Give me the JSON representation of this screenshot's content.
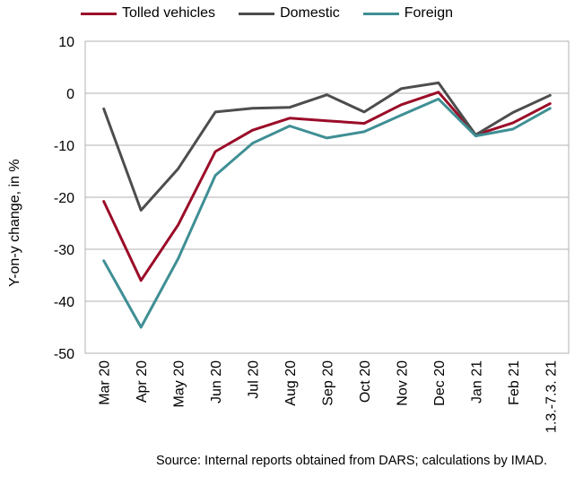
{
  "chart_data": {
    "type": "line",
    "ylabel": "Y-on-y change, in %",
    "ylim": [
      -50,
      10
    ],
    "yticks": [
      10,
      0,
      -10,
      -20,
      -30,
      -40,
      -50
    ],
    "grid": true,
    "legend_position": "top",
    "categories": [
      "Mar 20",
      "Apr 20",
      "May 20",
      "Jun 20",
      "Jul 20",
      "Aug 20",
      "Sep 20",
      "Oct 20",
      "Nov 20",
      "Dec 20",
      "Jan 21",
      "Feb 21",
      "1.3.-7.3. 21"
    ],
    "series": [
      {
        "name": "Tolled vehicles",
        "color": "#9b0c28",
        "values": [
          -20.8,
          -36.0,
          -25.3,
          -11.2,
          -7.1,
          -4.8,
          -5.3,
          -5.8,
          -2.2,
          0.2,
          -8.0,
          -5.7,
          -2.0
        ]
      },
      {
        "name": "Domestic",
        "color": "#4d4d4d",
        "values": [
          -3.0,
          -22.5,
          -14.5,
          -3.6,
          -2.9,
          -2.7,
          -0.3,
          -3.6,
          0.9,
          2.0,
          -8.0,
          -3.7,
          -0.4
        ]
      },
      {
        "name": "Foreign",
        "color": "#3f8f94",
        "values": [
          -32.2,
          -45.0,
          -31.8,
          -15.8,
          -9.6,
          -6.3,
          -8.6,
          -7.4,
          -4.2,
          -1.1,
          -8.2,
          -6.9,
          -2.9
        ]
      }
    ]
  },
  "source": "Source: Internal reports obtained from DARS; calculations by IMAD."
}
